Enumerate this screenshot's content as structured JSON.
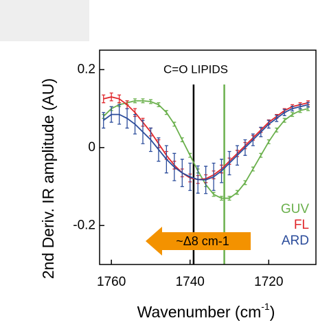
{
  "chart_data": {
    "type": "line",
    "ylabel": "2nd Deriv. IR amplitude (AU)",
    "xlabel": "Wavenumber (cm",
    "xlabel_sup": "-1",
    "xlabel_end": ")",
    "annotation": "C=O LIPIDS",
    "arrow_label": "~Δ8 cm-1",
    "arrow_color": "#f39200",
    "vlines": [
      {
        "x": 1739.1,
        "color": "#000000"
      },
      {
        "x": 1731.3,
        "color": "#6ab04c"
      }
    ],
    "xlim": [
      1763,
      1708
    ],
    "xticks": [
      1760,
      1740,
      1720
    ],
    "ylim": [
      -0.3,
      0.25
    ],
    "yticks": [
      0.2,
      0,
      -0.2
    ],
    "x": [
      1762,
      1760,
      1758,
      1756,
      1754,
      1752,
      1750,
      1748,
      1746,
      1744,
      1742,
      1740,
      1738,
      1736,
      1734,
      1732,
      1730,
      1728,
      1726,
      1724,
      1722,
      1720,
      1718,
      1716,
      1714,
      1712,
      1710
    ],
    "series": [
      {
        "name": "GUV",
        "color": "#6ab04c",
        "values": [
          0.08,
          0.1,
          0.11,
          0.115,
          0.12,
          0.12,
          0.118,
          0.11,
          0.09,
          0.06,
          0.02,
          -0.02,
          -0.06,
          -0.095,
          -0.12,
          -0.13,
          -0.13,
          -0.115,
          -0.09,
          -0.055,
          -0.02,
          0.015,
          0.045,
          0.07,
          0.085,
          0.095,
          0.1
        ],
        "errors": [
          0.005,
          0.005,
          0.005,
          0.005,
          0.005,
          0.005,
          0.005,
          0.005,
          0.005,
          0.005,
          0.005,
          0.005,
          0.005,
          0.005,
          0.005,
          0.005,
          0.005,
          0.005,
          0.005,
          0.005,
          0.005,
          0.005,
          0.005,
          0.005,
          0.005,
          0.005,
          0.005
        ]
      },
      {
        "name": "FL",
        "color": "#e0262b",
        "values": [
          0.125,
          0.13,
          0.125,
          0.11,
          0.09,
          0.065,
          0.04,
          0.01,
          -0.02,
          -0.045,
          -0.065,
          -0.078,
          -0.082,
          -0.08,
          -0.07,
          -0.055,
          -0.035,
          -0.015,
          0.005,
          0.025,
          0.045,
          0.065,
          0.08,
          0.095,
          0.105,
          0.11,
          0.115
        ],
        "errors": [
          0.01,
          0.01,
          0.01,
          0.01,
          0.01,
          0.01,
          0.01,
          0.01,
          0.01,
          0.01,
          0.01,
          0.01,
          0.01,
          0.01,
          0.01,
          0.01,
          0.008,
          0.008,
          0.008,
          0.006,
          0.006,
          0.006,
          0.005,
          0.005,
          0.005,
          0.005,
          0.005
        ]
      },
      {
        "name": "ARD",
        "color": "#2b4c9b",
        "values": [
          0.07,
          0.085,
          0.085,
          0.075,
          0.06,
          0.04,
          0.02,
          -0.005,
          -0.03,
          -0.05,
          -0.065,
          -0.075,
          -0.082,
          -0.083,
          -0.075,
          -0.06,
          -0.04,
          -0.02,
          0.0,
          0.02,
          0.04,
          0.06,
          0.075,
          0.09,
          0.1,
          0.105,
          0.11
        ],
        "errors": [
          0.02,
          0.02,
          0.025,
          0.025,
          0.025,
          0.03,
          0.03,
          0.03,
          0.035,
          0.035,
          0.035,
          0.035,
          0.035,
          0.035,
          0.035,
          0.03,
          0.03,
          0.025,
          0.02,
          0.015,
          0.012,
          0.01,
          0.008,
          0.008,
          0.006,
          0.006,
          0.006
        ]
      }
    ]
  }
}
